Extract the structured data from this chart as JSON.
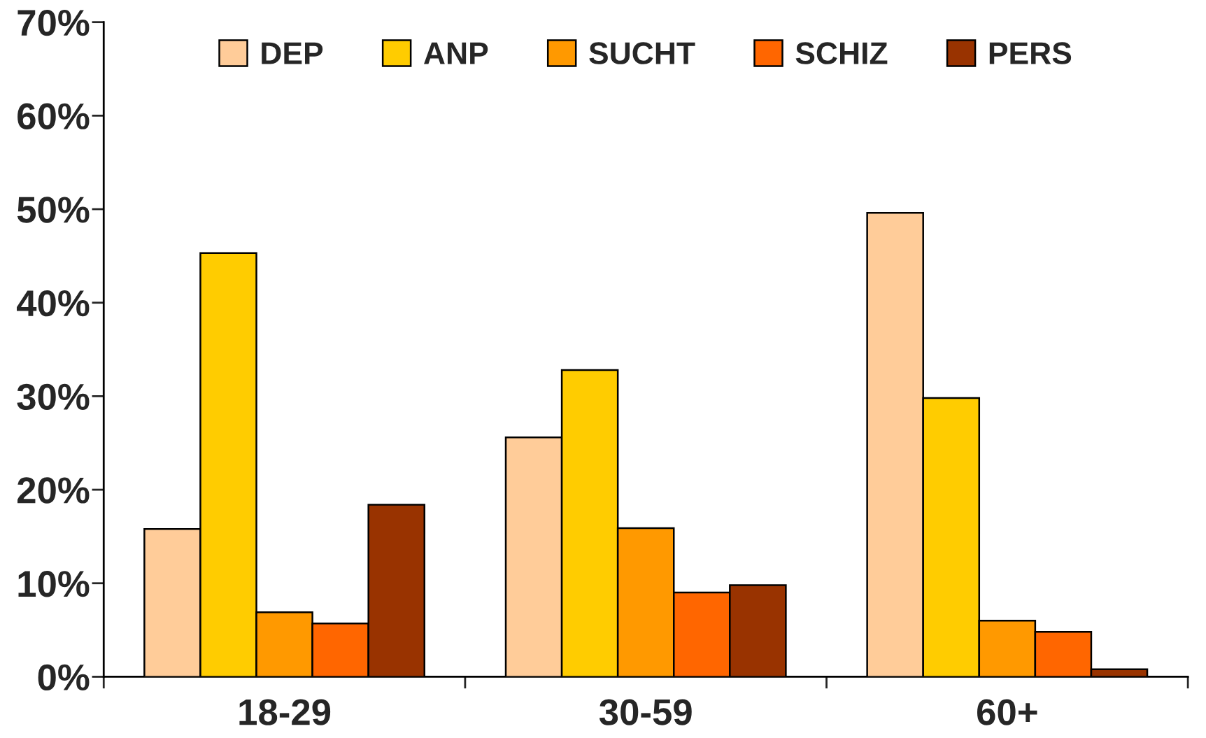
{
  "chart_data": {
    "type": "bar",
    "categories": [
      "18-29",
      "30-59",
      "60+"
    ],
    "series": [
      {
        "name": "DEP",
        "color": "#ffcc99",
        "values": [
          15.8,
          25.6,
          49.6
        ]
      },
      {
        "name": "ANP",
        "color": "#ffcc00",
        "values": [
          45.3,
          32.8,
          29.8
        ]
      },
      {
        "name": "SUCHT",
        "color": "#ff9900",
        "values": [
          6.9,
          15.9,
          6.0
        ]
      },
      {
        "name": "SCHIZ",
        "color": "#ff6600",
        "values": [
          5.7,
          9.0,
          4.8
        ]
      },
      {
        "name": "PERS",
        "color": "#993300",
        "values": [
          18.4,
          9.8,
          0.8
        ]
      }
    ],
    "ylim": [
      0,
      70
    ],
    "yticks": [
      {
        "value": 0,
        "label": "0%"
      },
      {
        "value": 10,
        "label": "10%"
      },
      {
        "value": 20,
        "label": "20%"
      },
      {
        "value": 30,
        "label": "30%"
      },
      {
        "value": 40,
        "label": "40%"
      },
      {
        "value": 50,
        "label": "50%"
      },
      {
        "value": 60,
        "label": "60%"
      },
      {
        "value": 70,
        "label": "70%"
      }
    ],
    "grid": false,
    "legend": "top"
  }
}
